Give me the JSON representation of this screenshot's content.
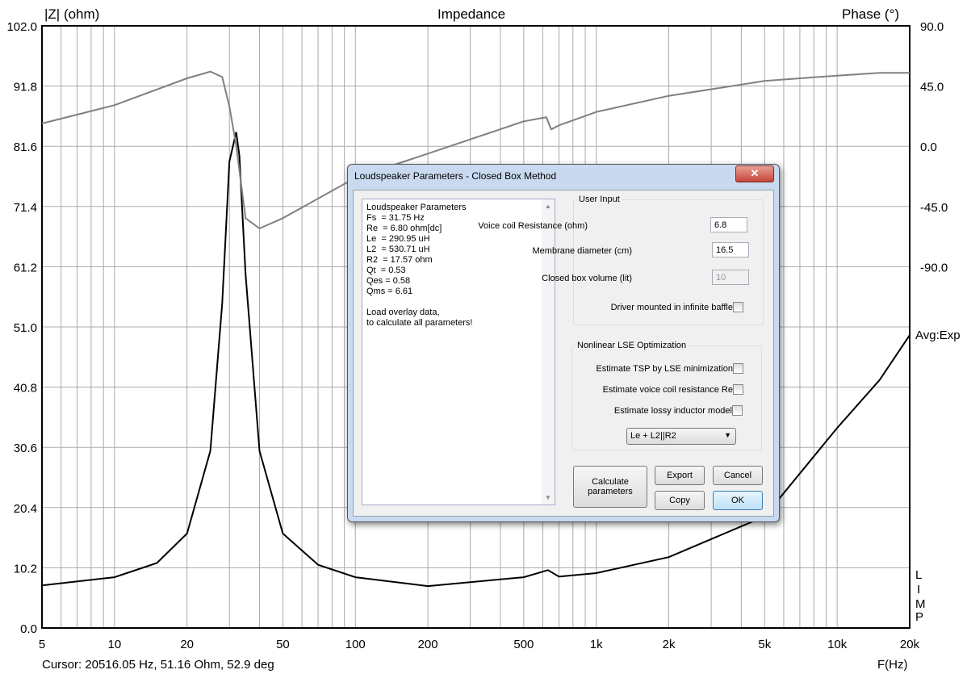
{
  "chart_data": {
    "type": "line",
    "title": "Impedance",
    "ylabel": "|Z| (ohm)",
    "y2label": "Phase (°)",
    "xlabel": "F(Hz)",
    "xscale": "log",
    "xlim": [
      5,
      20000
    ],
    "ylim": [
      0,
      102
    ],
    "y2lim": [
      -357.6,
      90
    ],
    "yticks": [
      "102.0",
      "91.8",
      "81.6",
      "71.4",
      "61.2",
      "51.0",
      "40.8",
      "30.6",
      "20.4",
      "10.2",
      "0.0"
    ],
    "y2ticks": [
      "90.0",
      "45.0",
      "0.0",
      "-45.0",
      "-90.0"
    ],
    "xticks": [
      "5",
      "10",
      "20",
      "50",
      "100",
      "200",
      "500",
      "1k",
      "2k",
      "5k",
      "10k",
      "20k"
    ],
    "series": [
      {
        "name": "Impedance",
        "color": "#000000",
        "x": [
          5,
          10,
          15,
          20,
          25,
          28,
          30,
          32,
          33,
          35,
          40,
          50,
          70,
          100,
          200,
          500,
          630,
          700,
          1000,
          2000,
          5000,
          10000,
          15000,
          20000
        ],
        "y": [
          7.2,
          8.6,
          11,
          16,
          30,
          55,
          79,
          84,
          80,
          60,
          30,
          16,
          10.7,
          8.6,
          7.1,
          8.6,
          9.8,
          8.7,
          9.3,
          12,
          18.9,
          33.9,
          42,
          49.6
        ]
      },
      {
        "name": "Phase",
        "color": "#808080",
        "axis": "right",
        "x": [
          5,
          10,
          20,
          25,
          28,
          30,
          32,
          35,
          40,
          50,
          100,
          200,
          500,
          620,
          650,
          700,
          1000,
          2000,
          5000,
          10000,
          15000,
          20000
        ],
        "y": [
          17.4,
          31,
          51,
          56,
          52,
          30,
          1,
          -53,
          -60.6,
          -53,
          -23,
          -5,
          19,
          22,
          13,
          16,
          26,
          38,
          49,
          53,
          55,
          55
        ]
      }
    ],
    "annotations": [
      "Avg:Exp",
      "L",
      "I",
      "M",
      "P"
    ]
  },
  "status": {
    "cursor": "Cursor: 20516.05 Hz, 51.16 Ohm, 52.9 deg"
  },
  "dialog": {
    "title": "Loudspeaker Parameters - Closed Box Method",
    "close": "✕",
    "results": "Loudspeaker Parameters\nFs  = 31.75 Hz\nRe  = 6.80 ohm[dc]\nLe  = 290.95 uH\nL2  = 530.71 uH\nR2  = 17.57 ohm\nQt  = 0.53\nQes = 0.58\nQms = 6.61\n\nLoad overlay data,\nto calculate all parameters!",
    "user_input": "User Input",
    "re_label": "Voice coil Resistance (ohm)",
    "re_value": "6.8",
    "diam_label": "Membrane diameter (cm)",
    "diam_value": "16.5",
    "vol_label": "Closed box volume (lit)",
    "vol_value": "10",
    "baffle_label": "Driver mounted in infinite baffle",
    "lse": "Nonlinear LSE Optimization",
    "tsp_label": "Estimate TSP by LSE minimization",
    "rec_label": "Estimate voice coil resistance Re",
    "lossy_label": "Estimate lossy inductor model",
    "model": "Le + L2||R2",
    "calc": "Calculate parameters",
    "export": "Export",
    "cancel": "Cancel",
    "copy": "Copy",
    "ok": "OK"
  }
}
